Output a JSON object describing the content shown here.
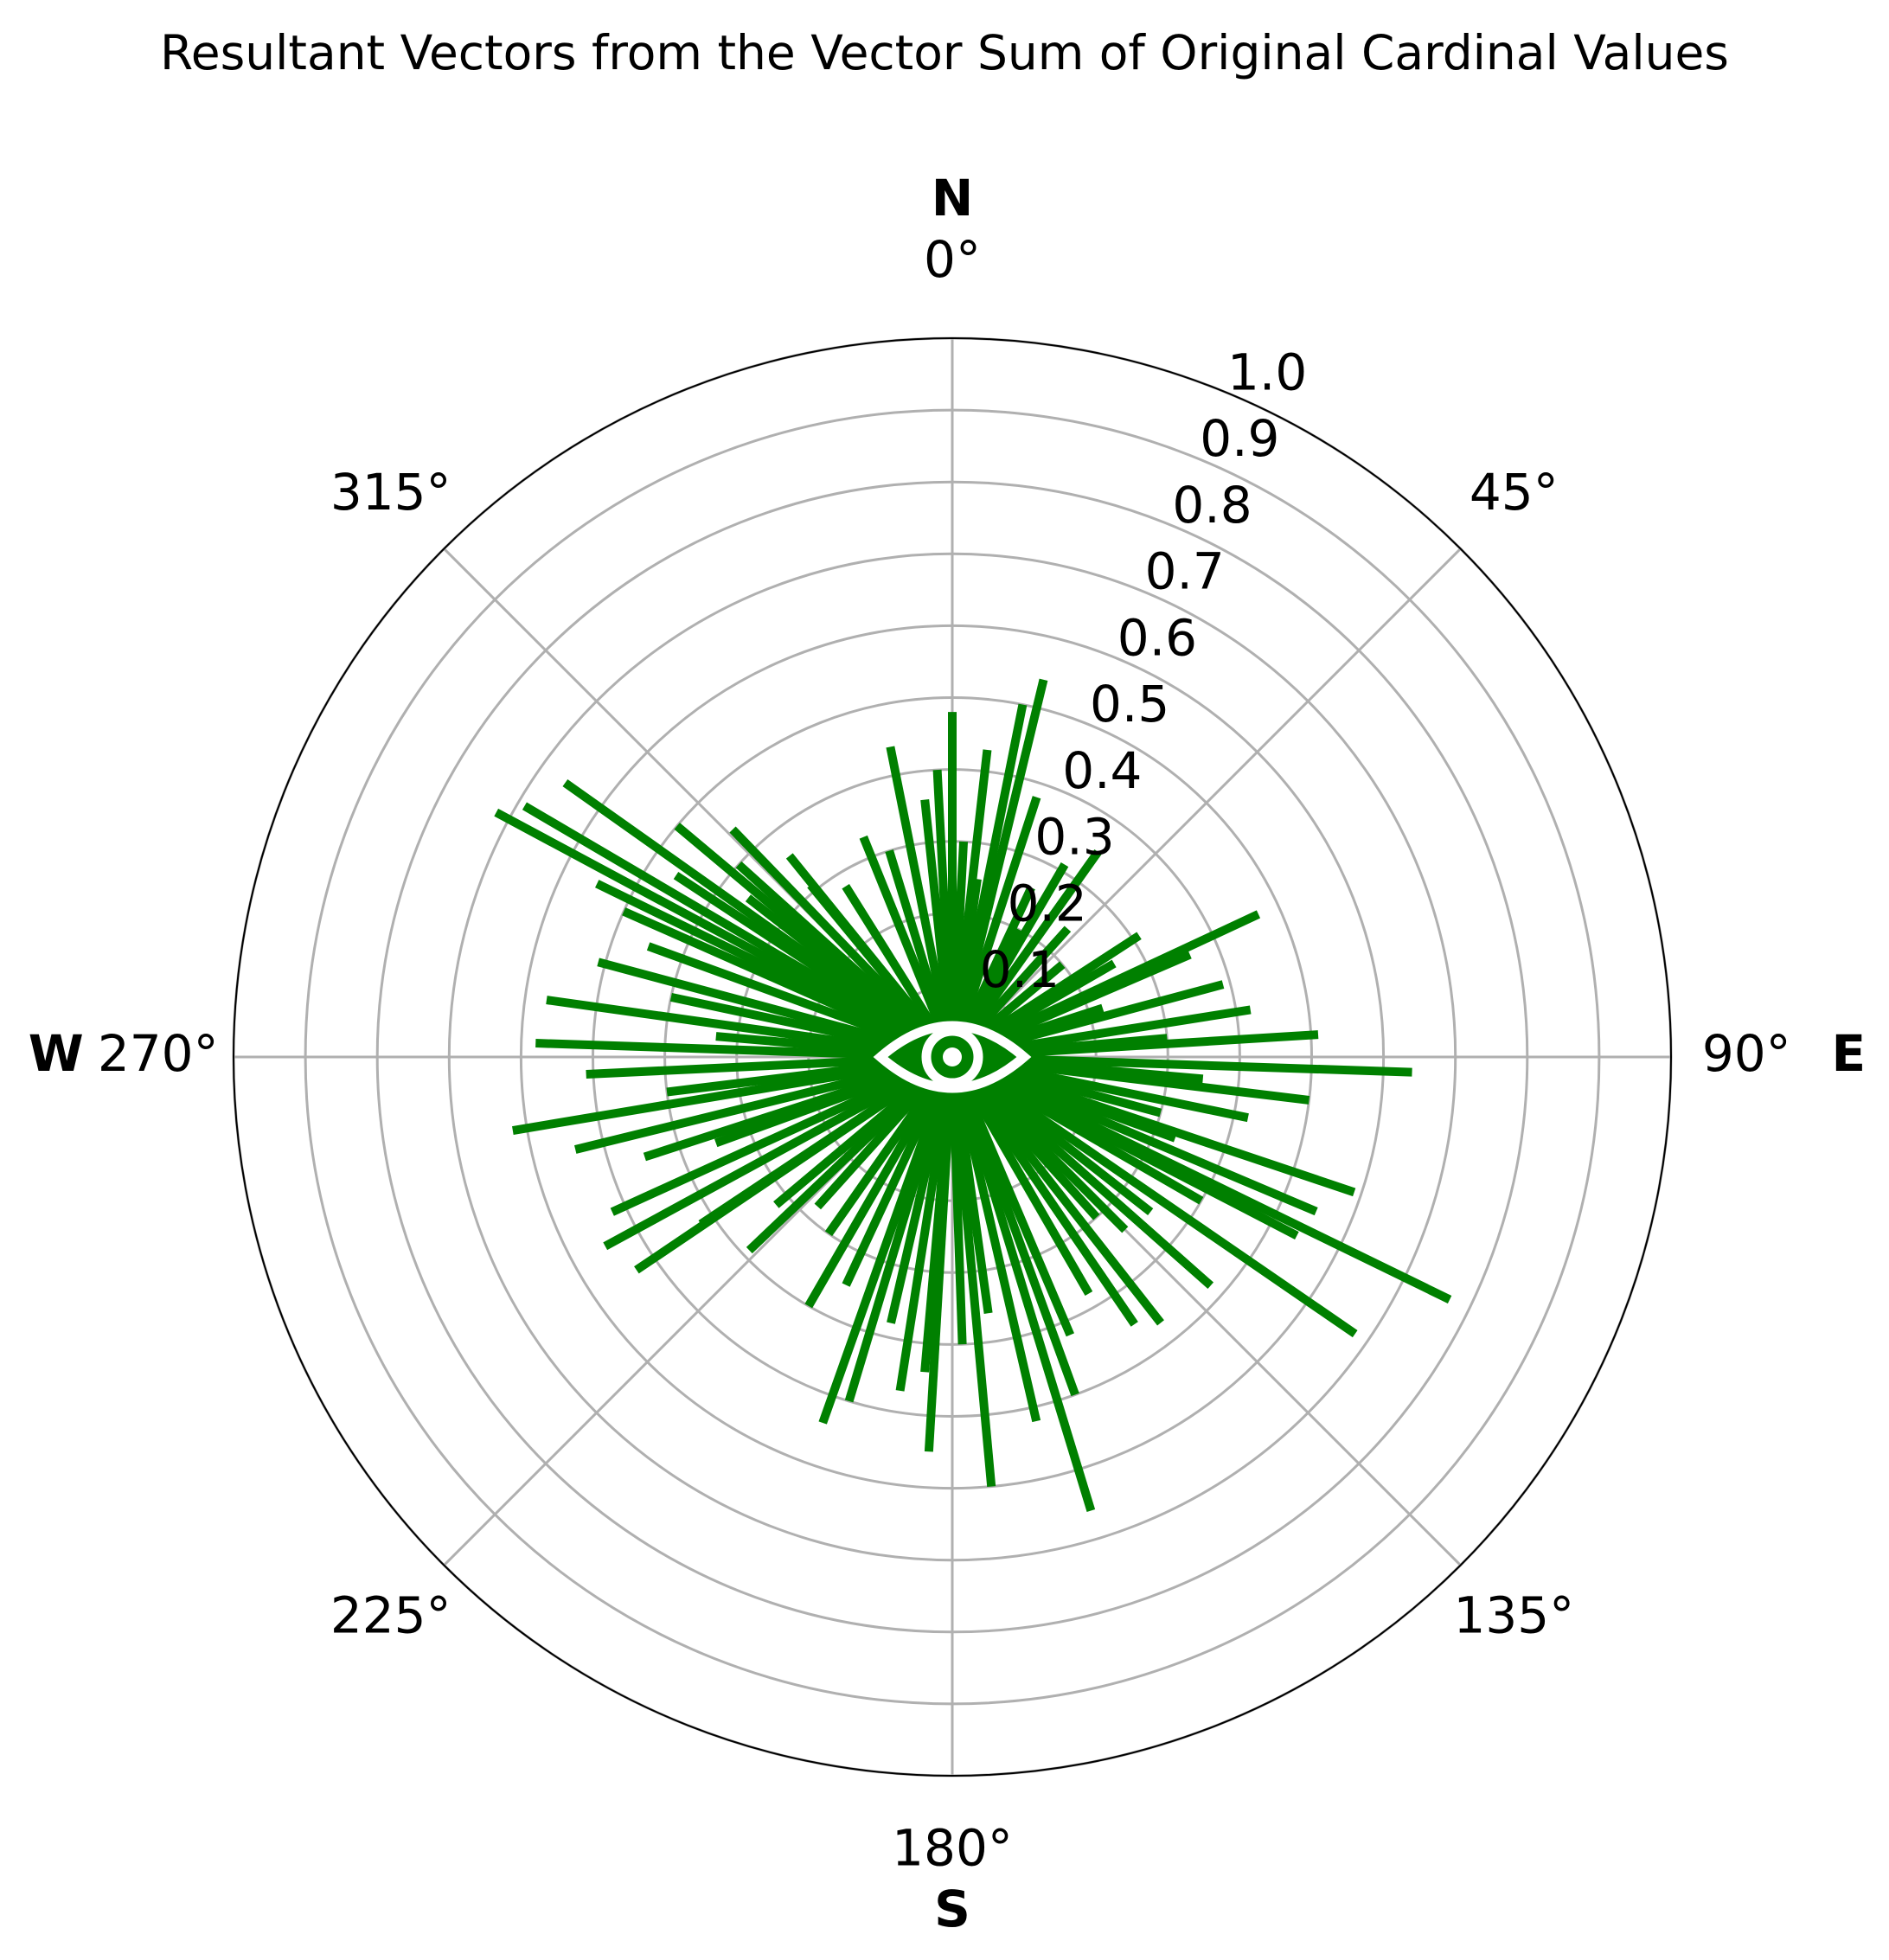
{
  "chart_data": {
    "type": "polar",
    "title": "Resultant Vectors from the Vector Sum of Original Cardinal Values",
    "series": [
      {
        "color": "#008000",
        "theta": [
          13.6,
          11.3,
          0,
          348.7,
          298.2,
          305.3,
          300.4,
          65,
          91.9,
          86.5,
          108.6,
          116,
          124.5,
          163,
          174.8,
          183.4,
          199.5,
          260.5,
          271.9,
          241.4,
          236,
          101.6,
          145.7,
          117.4,
          321,
          338,
          30.3,
          66.7,
          75,
          81,
          96.9,
          113,
          131.5,
          141.9,
          167,
          188.9,
          196.7,
          226.4,
          236.4,
          245.5,
          256.2,
          267.3,
          278,
          285,
          293.9,
          307.9,
          303.3,
          320.5,
          353.9,
          6.5,
          35.4,
          57,
          3,
          18,
          25,
          42,
          50,
          72,
          105,
          135,
          150,
          157,
          172,
          178,
          193,
          205,
          215,
          222,
          230,
          250,
          263,
          275,
          290,
          296,
          312,
          316,
          328,
          343,
          357,
          120,
          128,
          138,
          160,
          185,
          210,
          252,
          282,
          310,
          8,
          28,
          60,
          85,
          95,
          110
        ],
        "r": [
          0.54,
          0.5,
          0.48,
          0.44,
          0.72,
          0.66,
          0.69,
          0.47,
          0.64,
          0.51,
          0.59,
          0.77,
          0.68,
          0.66,
          0.6,
          0.55,
          0.54,
          0.62,
          0.58,
          0.55,
          0.53,
          0.42,
          0.45,
          0.54,
          0.36,
          0.33,
          0.31,
          0.36,
          0.39,
          0.42,
          0.5,
          0.55,
          0.48,
          0.47,
          0.52,
          0.47,
          0.5,
          0.39,
          0.42,
          0.52,
          0.54,
          0.51,
          0.57,
          0.51,
          0.5,
          0.36,
          0.46,
          0.31,
          0.36,
          0.43,
          0.35,
          0.31,
          0.3,
          0.38,
          0.26,
          0.24,
          0.2,
          0.22,
          0.3,
          0.34,
          0.38,
          0.42,
          0.36,
          0.4,
          0.38,
          0.35,
          0.3,
          0.28,
          0.32,
          0.35,
          0.4,
          0.33,
          0.45,
          0.55,
          0.4,
          0.44,
          0.28,
          0.3,
          0.4,
          0.4,
          0.35,
          0.3,
          0.5,
          0.44,
          0.4,
          0.45,
          0.4,
          0.5,
          0.25,
          0.2,
          0.26,
          0.3,
          0.35,
          0.33
        ]
      }
    ],
    "ylim": [
      0,
      1
    ],
    "yticks": [
      0.1,
      0.2,
      0.3,
      0.4,
      0.5,
      0.6,
      0.7,
      0.8,
      0.9,
      {
        "value": 1,
        "label": "1.0"
      }
    ],
    "xticks": [
      {
        "value": 0,
        "label": "0°"
      },
      {
        "value": 45,
        "label": "45°"
      },
      {
        "value": 90,
        "label": "90°"
      },
      {
        "value": 135,
        "label": "135°"
      },
      {
        "value": 180,
        "label": "180°"
      },
      {
        "value": 225,
        "label": "225°"
      },
      {
        "value": 270,
        "label": "270°"
      },
      {
        "value": 315,
        "label": "315°"
      }
    ],
    "direction_labels": [
      {
        "value": 0,
        "label": "N"
      },
      {
        "value": 90,
        "label": "E"
      },
      {
        "value": 180,
        "label": "S"
      },
      {
        "value": 270,
        "label": "W"
      }
    ],
    "grid": true
  }
}
